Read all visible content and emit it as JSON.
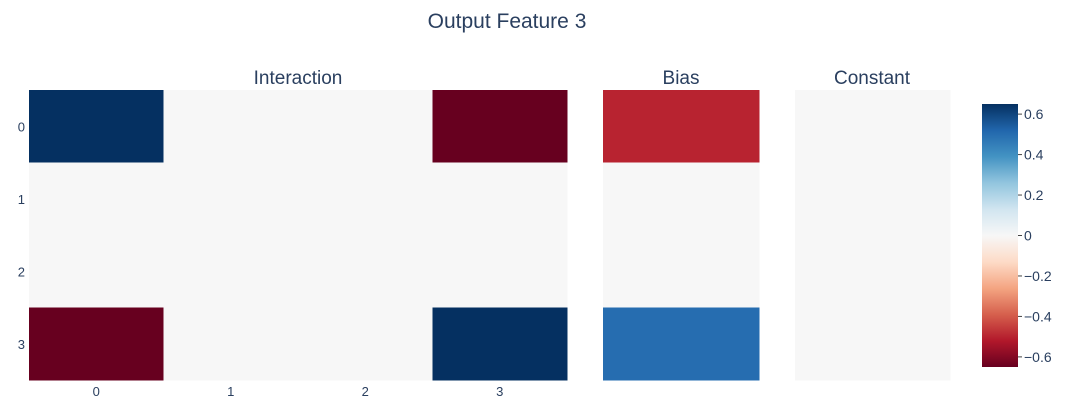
{
  "chart_data": {
    "type": "heatmap",
    "title": "Output Feature 3",
    "panels": [
      {
        "name": "Interaction",
        "x_ticks": [
          "0",
          "1",
          "2",
          "3"
        ],
        "y_ticks": [
          "0",
          "1",
          "2",
          "3"
        ],
        "z": [
          [
            0.65,
            0,
            0,
            -0.65
          ],
          [
            0,
            0,
            0,
            0
          ],
          [
            0,
            0,
            0,
            0
          ],
          [
            -0.65,
            0,
            0,
            0.65
          ]
        ]
      },
      {
        "name": "Bias",
        "x_ticks": [],
        "y_ticks": [],
        "z": [
          [
            -0.5
          ],
          [
            0
          ],
          [
            0
          ],
          [
            0.5
          ]
        ]
      },
      {
        "name": "Constant",
        "x_ticks": [],
        "y_ticks": [],
        "z": [
          [
            0
          ]
        ]
      }
    ],
    "colorscale": "RdBu",
    "zlim": [
      -0.65,
      0.65
    ],
    "colorbar_ticks": [
      "0.6",
      "0.4",
      "0.2",
      "0",
      "−0.2",
      "−0.4",
      "−0.6"
    ],
    "colorbar_tick_values": [
      0.6,
      0.4,
      0.2,
      0,
      -0.2,
      -0.4,
      -0.6
    ]
  }
}
